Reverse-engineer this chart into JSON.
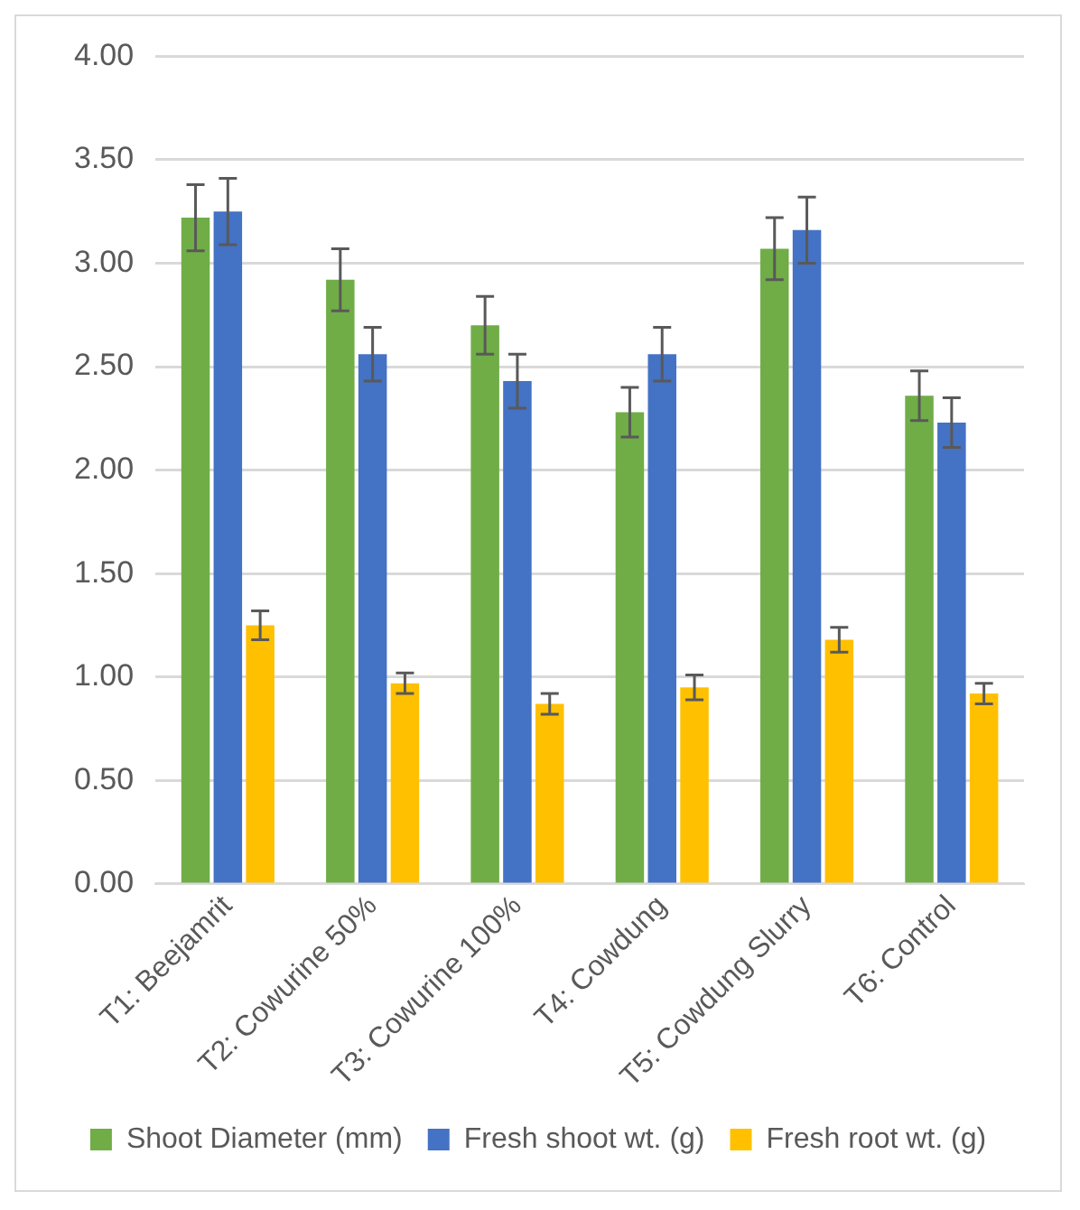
{
  "chart_data": {
    "type": "bar",
    "categories": [
      "T1: Beejamrit",
      "T2: Cowurine 50%",
      "T3: Cowurine 100%",
      "T4: Cowdung",
      "T5: Cowdung Slurry",
      "T6: Control"
    ],
    "series": [
      {
        "name": "Shoot Diameter (mm)",
        "color": "#70ad47",
        "values": [
          3.22,
          2.92,
          2.7,
          2.28,
          3.07,
          2.36
        ],
        "errors": [
          0.16,
          0.15,
          0.14,
          0.12,
          0.15,
          0.12
        ]
      },
      {
        "name": "Fresh shoot wt. (g)",
        "color": "#4472c4",
        "values": [
          3.25,
          2.56,
          2.43,
          2.56,
          3.16,
          2.23
        ],
        "errors": [
          0.16,
          0.13,
          0.13,
          0.13,
          0.16,
          0.12
        ]
      },
      {
        "name": "Fresh root wt. (g)",
        "color": "#ffc000",
        "values": [
          1.25,
          0.97,
          0.87,
          0.95,
          1.18,
          0.92
        ],
        "errors": [
          0.07,
          0.05,
          0.05,
          0.06,
          0.06,
          0.05
        ]
      }
    ],
    "ylim": [
      0,
      4
    ],
    "yticks": [
      {
        "value": 0,
        "label": "0.00"
      },
      {
        "value": 0.5,
        "label": "0.50"
      },
      {
        "value": 1,
        "label": "1.00"
      },
      {
        "value": 1.5,
        "label": "1.50"
      },
      {
        "value": 2,
        "label": "2.00"
      },
      {
        "value": 2.5,
        "label": "2.50"
      },
      {
        "value": 3,
        "label": "3.00"
      },
      {
        "value": 3.5,
        "label": "3.50"
      },
      {
        "value": 4,
        "label": "4.00"
      }
    ],
    "grid": "y",
    "legend": "bottom"
  }
}
